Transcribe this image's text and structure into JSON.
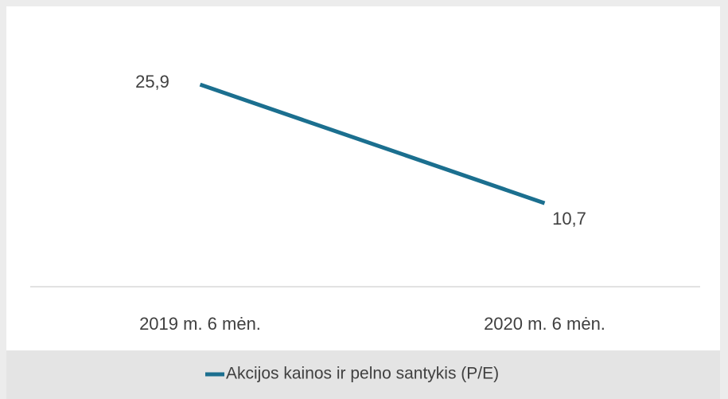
{
  "chart_data": {
    "type": "line",
    "categories": [
      "2019 m. 6 mėn.",
      "2020 m. 6 mėn."
    ],
    "series": [
      {
        "name": "Akcijos kainos ir pelno santykis (P/E)",
        "color": "#1b6f8f",
        "values": [
          25.9,
          10.7
        ],
        "value_labels": [
          "25,9",
          "10,7"
        ]
      }
    ],
    "ylim": [
      0,
      30
    ]
  }
}
